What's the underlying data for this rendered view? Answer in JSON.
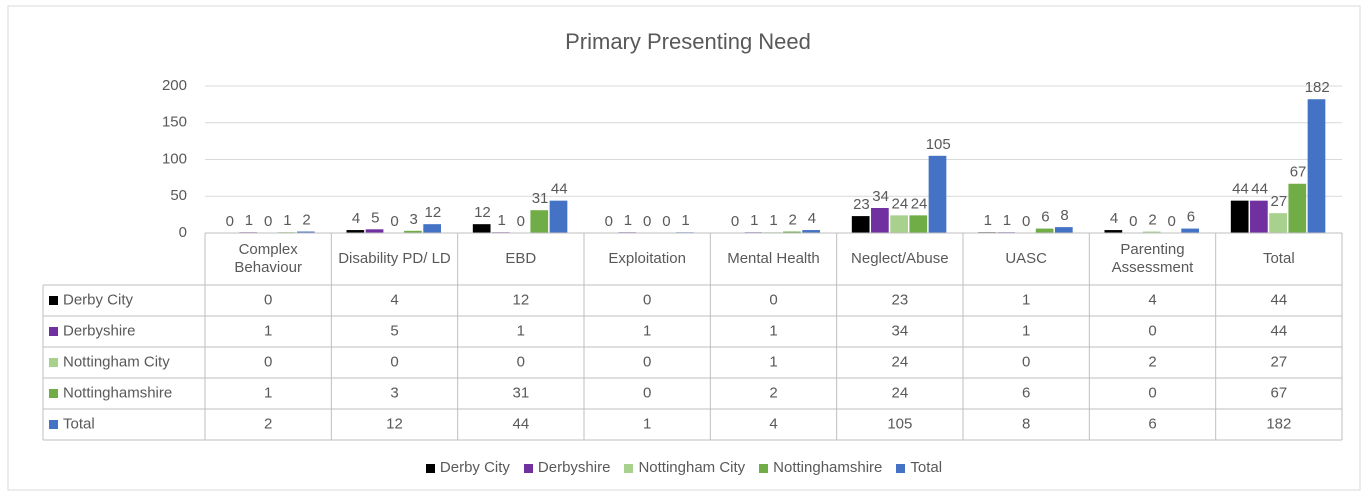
{
  "chart_data": {
    "type": "bar",
    "title": "Primary Presenting Need",
    "categories": [
      "Complex Behaviour",
      "Disability PD/ LD",
      "EBD",
      "Exploitation",
      "Mental Health",
      "Neglect/Abuse",
      "UASC",
      "Parenting Assessment",
      "Total"
    ],
    "series": [
      {
        "name": "Derby City",
        "color": "#000000",
        "values": [
          0,
          4,
          12,
          0,
          0,
          23,
          1,
          4,
          44
        ]
      },
      {
        "name": "Derbyshire",
        "color": "#7030a0",
        "values": [
          1,
          5,
          1,
          1,
          1,
          34,
          1,
          0,
          44
        ]
      },
      {
        "name": "Nottingham City",
        "color": "#a9d18e",
        "values": [
          0,
          0,
          0,
          0,
          1,
          24,
          0,
          2,
          27
        ]
      },
      {
        "name": "Nottinghamshire",
        "color": "#70ad47",
        "values": [
          1,
          3,
          31,
          0,
          2,
          24,
          6,
          0,
          67
        ]
      },
      {
        "name": "Total",
        "color": "#4472c4",
        "values": [
          2,
          12,
          44,
          1,
          4,
          105,
          8,
          6,
          182
        ]
      }
    ],
    "ylim": [
      0,
      200
    ],
    "yticks": [
      0,
      50,
      100,
      150,
      200
    ],
    "grid": true,
    "legend": "bottom"
  }
}
